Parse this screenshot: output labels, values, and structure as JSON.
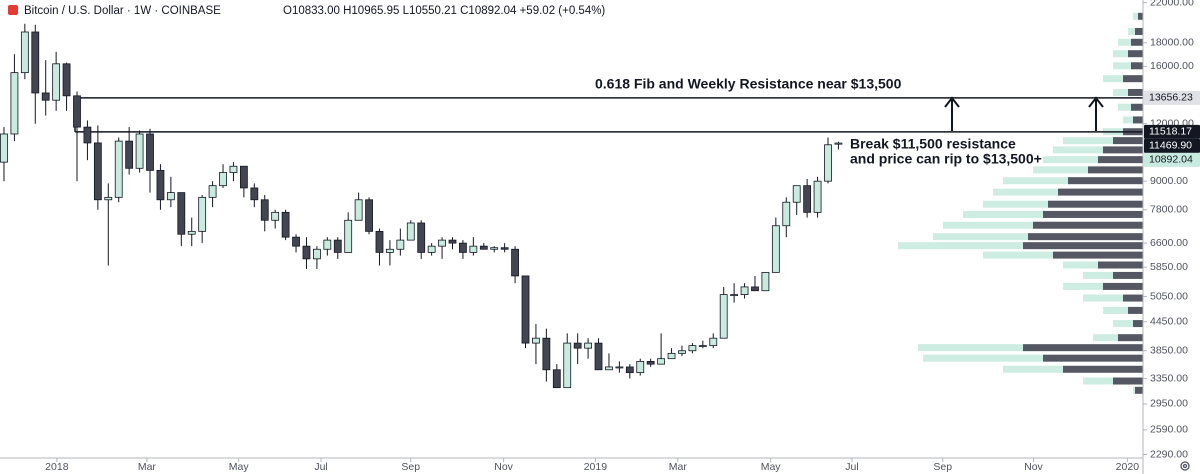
{
  "chart_data": {
    "type": "candlestick",
    "header": {
      "symbol": "Bitcoin / U.S. Dollar · 1W · COINBASE",
      "ohlc": "O10833.00 H10965.95 L10550.21 C10892.04 +59.02 (+0.54%)"
    },
    "annotations": [
      "0.618 Fib and Weekly Resistance near $13,500",
      "Break $11,500 resistance",
      "and price can rip to $13,500+"
    ],
    "log_scale": true,
    "up_color": "#c8eadf",
    "down_color": "#434651",
    "categories": [
      null,
      null,
      null,
      null,
      null,
      null,
      null,
      null,
      null,
      null,
      null,
      null,
      null,
      null,
      null,
      null,
      null,
      null,
      null,
      null,
      null,
      null,
      null,
      null,
      null,
      null,
      null,
      null,
      null,
      null,
      null,
      null,
      null,
      null,
      null,
      null,
      null,
      null,
      null,
      null,
      null,
      null,
      null,
      null,
      null,
      null,
      null,
      null,
      null,
      null,
      null,
      null,
      null,
      null,
      null,
      null,
      null,
      null,
      null,
      null,
      null,
      null,
      null,
      null,
      null,
      null,
      null,
      null,
      null,
      null,
      null,
      null,
      null,
      null,
      null,
      null,
      null,
      null,
      null,
      null,
      null
    ],
    "open": [
      9900,
      11400,
      15500,
      19000,
      14000,
      13500,
      16200,
      13800,
      11800,
      10900,
      8200,
      8300,
      11000,
      9600,
      11400,
      9500,
      8200,
      8500,
      6900,
      7000,
      8300,
      8800,
      9400,
      9700,
      8700,
      8200,
      7400,
      7700,
      6800,
      6500,
      6100,
      6400,
      6700,
      6300,
      7400,
      8200,
      7000,
      6300,
      6400,
      6700,
      7300,
      6300,
      6500,
      6700,
      6600,
      6300,
      6500,
      6400,
      6450,
      6400,
      5600,
      4000,
      4100,
      3500,
      3200,
      4000,
      3900,
      4000,
      3500,
      3550,
      3550,
      3450,
      3650,
      3600,
      3700,
      3800,
      3850,
      3950,
      3950,
      4100,
      5100,
      5100,
      5300,
      5200,
      5700,
      7200,
      8100,
      8800,
      7700,
      9000,
      10833
    ],
    "high": [
      11800,
      17000,
      19800,
      19700,
      16500,
      17200,
      16300,
      14100,
      12200,
      11900,
      8900,
      11200,
      11800,
      11600,
      11700,
      9800,
      9200,
      8500,
      7500,
      8400,
      9000,
      9800,
      9900,
      9700,
      8900,
      8400,
      7800,
      7800,
      6900,
      6800,
      6500,
      6800,
      6800,
      7700,
      8500,
      8300,
      7100,
      6700,
      7100,
      7400,
      7400,
      6600,
      6800,
      6800,
      6700,
      6800,
      6600,
      6500,
      6600,
      6500,
      5600,
      4400,
      4300,
      3600,
      4200,
      4200,
      4100,
      4100,
      3800,
      3650,
      3600,
      3700,
      3700,
      4200,
      3900,
      3950,
      4000,
      4050,
      4200,
      5300,
      5400,
      5400,
      5600,
      5700,
      7500,
      8300,
      8700,
      9100,
      9200,
      11200,
      10965.95
    ],
    "low": [
      9000,
      11000,
      15000,
      12000,
      12500,
      12800,
      12800,
      9000,
      10000,
      7800,
      5900,
      8100,
      9300,
      9400,
      8500,
      7800,
      7900,
      6500,
      6500,
      6600,
      7900,
      8700,
      9000,
      8300,
      7900,
      7000,
      7100,
      6700,
      6300,
      5800,
      5800,
      6200,
      6100,
      6300,
      7400,
      6900,
      5900,
      5900,
      6200,
      6700,
      6100,
      6200,
      6100,
      6400,
      6100,
      6200,
      6400,
      6300,
      6300,
      5400,
      3900,
      3600,
      3300,
      3200,
      3200,
      3600,
      3700,
      3500,
      3500,
      3450,
      3350,
      3400,
      3550,
      3600,
      3700,
      3750,
      3800,
      3900,
      3900,
      4100,
      4900,
      5000,
      5200,
      5200,
      5700,
      6800,
      7600,
      7500,
      7500,
      8900,
      10550.21
    ],
    "close": [
      11400,
      15500,
      19000,
      14000,
      13500,
      16200,
      13800,
      11800,
      10900,
      8200,
      8300,
      11000,
      9600,
      11400,
      9500,
      8200,
      8500,
      6900,
      7000,
      8300,
      8800,
      9400,
      9700,
      8700,
      8200,
      7400,
      7700,
      6800,
      6500,
      6100,
      6400,
      6700,
      6300,
      7400,
      8200,
      7000,
      6300,
      6400,
      6700,
      7300,
      6300,
      6500,
      6700,
      6600,
      6300,
      6500,
      6400,
      6450,
      6400,
      5600,
      4000,
      4100,
      3500,
      3200,
      4000,
      3900,
      4000,
      3500,
      3550,
      3550,
      3450,
      3650,
      3600,
      3700,
      3800,
      3850,
      3950,
      3950,
      4100,
      5100,
      5100,
      5300,
      5200,
      5700,
      7200,
      8100,
      8800,
      7700,
      9000,
      10800,
      10892.04
    ],
    "xlim": [
      -0.19,
      109.2
    ],
    "xticks": [
      {
        "value": 5.07,
        "label": "2018"
      },
      {
        "value": 13.7,
        "label": "Mar"
      },
      {
        "value": 22.5,
        "label": "May"
      },
      {
        "value": 30.4,
        "label": "Jul"
      },
      {
        "value": 39.0,
        "label": "Sep"
      },
      {
        "value": 47.9,
        "label": "Nov"
      },
      {
        "value": 56.7,
        "label": "2019"
      },
      {
        "value": 64.6,
        "label": "Mar"
      },
      {
        "value": 73.5,
        "label": "May"
      },
      {
        "value": 81.3,
        "label": "Jul"
      },
      {
        "value": 90.0,
        "label": "Sep"
      },
      {
        "value": 98.7,
        "label": "Nov"
      },
      {
        "value": 107.7,
        "label": "2020"
      }
    ],
    "ylim": [
      2250,
      22300
    ],
    "yticks": [
      {
        "value": 22000,
        "label": "22000.00"
      },
      {
        "value": 18000,
        "label": "18000.00"
      },
      {
        "value": 16000,
        "label": "16000.00"
      },
      {
        "value": 12000,
        "label": "12000.00"
      },
      {
        "value": 9000,
        "label": "9000.00"
      },
      {
        "value": 7800,
        "label": "7800.00"
      },
      {
        "value": 6600,
        "label": "6600.00"
      },
      {
        "value": 5850,
        "label": "5850.00"
      },
      {
        "value": 5050,
        "label": "5050.00"
      },
      {
        "value": 4450,
        "label": "4450.00"
      },
      {
        "value": 3850,
        "label": "3850.00"
      },
      {
        "value": 3350,
        "label": "3350.00"
      },
      {
        "value": 2950,
        "label": "2950.00"
      },
      {
        "value": 2590,
        "label": "2590.00"
      },
      {
        "value": 2290,
        "label": "2290.00"
      }
    ],
    "price_labels": [
      {
        "value": 13656.23,
        "label": "13656.23",
        "color": "#dfe1e6"
      },
      {
        "value": 11518.17,
        "label": "11518.17",
        "color": "#131722"
      },
      {
        "value": 11469.9,
        "label": "11469.90",
        "color": "#131722"
      },
      {
        "value": 10892.04,
        "label": "10892.04",
        "color": "#c8eadf"
      }
    ],
    "volume_profile": {
      "prices": [
        20500,
        19000,
        18000,
        17000,
        16000,
        15000,
        14000,
        13000,
        12200,
        11500,
        11000,
        10500,
        10000,
        9500,
        9000,
        8500,
        8000,
        7600,
        7200,
        6800,
        6500,
        6200,
        5900,
        5600,
        5300,
        5000,
        4700,
        4400,
        4100,
        3900,
        3700,
        3500,
        3300,
        3150
      ],
      "up": [
        5,
        7,
        13,
        15,
        18,
        20,
        15,
        13,
        10,
        20,
        50,
        50,
        55,
        55,
        65,
        65,
        65,
        80,
        90,
        95,
        125,
        70,
        35,
        30,
        40,
        40,
        25,
        20,
        25,
        105,
        120,
        60,
        30,
        2
      ],
      "down": [
        5,
        8,
        12,
        15,
        12,
        20,
        15,
        12,
        10,
        20,
        30,
        40,
        45,
        55,
        75,
        85,
        95,
        100,
        110,
        115,
        120,
        90,
        45,
        30,
        40,
        20,
        15,
        10,
        25,
        120,
        100,
        80,
        30,
        8
      ]
    }
  }
}
